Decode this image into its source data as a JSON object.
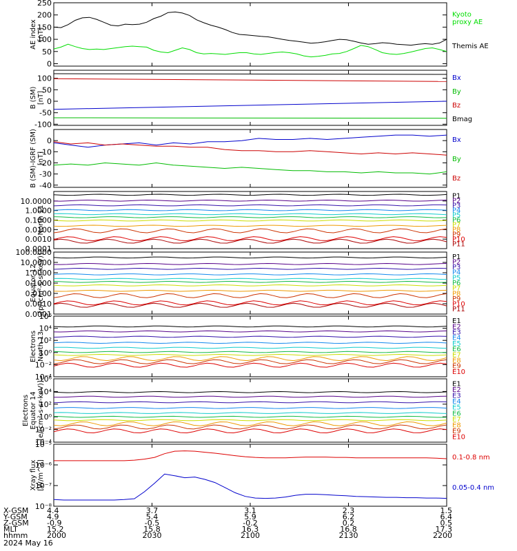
{
  "chart_data": [
    {
      "type": "line",
      "ylabel": [
        "AE index",
        "[nT]"
      ],
      "ylim": [
        -10,
        250
      ],
      "yticks": [
        0,
        50,
        100,
        150,
        200,
        250
      ],
      "yticklabels": [
        "0",
        "50",
        "100",
        "150",
        "200",
        "250"
      ],
      "series": [
        {
          "name": "Kyoto\nproxy AE",
          "color": "#00dd00",
          "y": [
            60,
            68,
            80,
            70,
            62,
            58,
            60,
            58,
            62,
            66,
            70,
            72,
            70,
            68,
            55,
            48,
            45,
            55,
            65,
            58,
            45,
            40,
            42,
            40,
            38,
            42,
            45,
            45,
            40,
            38,
            42,
            46,
            48,
            45,
            40,
            32,
            28,
            30,
            34,
            40,
            42,
            50,
            62,
            75,
            70,
            58,
            45,
            40,
            38,
            42,
            48,
            55,
            62,
            65,
            58,
            50
          ]
        },
        {
          "name": "Themis AE",
          "color": "#000000",
          "y": [
            150,
            148,
            160,
            178,
            188,
            190,
            182,
            170,
            158,
            155,
            162,
            160,
            162,
            170,
            185,
            195,
            210,
            212,
            208,
            198,
            180,
            168,
            158,
            150,
            140,
            128,
            120,
            118,
            115,
            112,
            110,
            105,
            100,
            95,
            92,
            88,
            84,
            86,
            90,
            95,
            100,
            98,
            92,
            85,
            80,
            82,
            86,
            84,
            80,
            78,
            76,
            80,
            82,
            80,
            85,
            100
          ]
        }
      ]
    },
    {
      "type": "line",
      "ylabel": [
        "B (SM)",
        "[nT]"
      ],
      "ylim": [
        -105,
        135
      ],
      "yticks": [
        -100,
        -50,
        0,
        50,
        100
      ],
      "yticklabels": [
        "-100",
        "-50",
        "0",
        "50",
        "100"
      ],
      "series": [
        {
          "name": "Bx",
          "color": "#0000cc",
          "y": [
            -35,
            0
          ]
        },
        {
          "name": "By",
          "color": "#00bb00",
          "y": [
            -72,
            -74
          ]
        },
        {
          "name": "Bz",
          "color": "#cc0000",
          "y": [
            98,
            86
          ]
        },
        {
          "name": "Bmag",
          "color": "#000000",
          "y": [
            120,
            117
          ]
        }
      ]
    },
    {
      "type": "line",
      "ylabel": [
        "B (SM)-IGRF (SM)",
        "[nT]"
      ],
      "ylim": [
        -42,
        10
      ],
      "yticks": [
        -40,
        -30,
        -20,
        -10,
        0
      ],
      "yticklabels": [
        "-40",
        "-30",
        "-20",
        "-10",
        "0"
      ],
      "series": [
        {
          "name": "Bx",
          "color": "#0000cc",
          "y": [
            -2,
            -4,
            -6,
            -4,
            -3,
            -2,
            -4,
            -2,
            -3,
            -1,
            -1,
            0,
            2,
            1,
            1,
            2,
            1,
            2,
            3,
            4,
            5,
            5,
            4,
            5
          ]
        },
        {
          "name": "By",
          "color": "#00bb00",
          "y": [
            -22,
            -21,
            -22,
            -20,
            -21,
            -22,
            -20,
            -22,
            -23,
            -24,
            -25,
            -24,
            -25,
            -26,
            -27,
            -27,
            -28,
            -28,
            -29,
            -28,
            -29,
            -29,
            -30,
            -28
          ]
        },
        {
          "name": "Bz",
          "color": "#cc0000",
          "y": [
            -1,
            -3,
            -2,
            -4,
            -3,
            -4,
            -5,
            -5,
            -6,
            -6,
            -8,
            -9,
            -9,
            -10,
            -10,
            -9,
            -10,
            -11,
            -12,
            -11,
            -12,
            -11,
            -12,
            -13
          ]
        }
      ]
    },
    {
      "type": "line",
      "log": true,
      "ylabel": [
        "North 11"
      ],
      "ylim": [
        0.0001,
        100
      ],
      "yticks": [
        0.0001,
        0.001,
        0.01,
        0.1,
        1,
        10
      ],
      "yticklabels": [
        "0.0001",
        "0.0010",
        "0.0100",
        "0.1000",
        "1.0000",
        "10.0000"
      ],
      "series": [
        {
          "name": "P1",
          "color": "#000000",
          "y": 45
        },
        {
          "name": "P2",
          "color": "#550088",
          "y": 11
        },
        {
          "name": "P3",
          "color": "#3311aa",
          "y": 3.5
        },
        {
          "name": "P4",
          "color": "#1188ee",
          "y": 1.1
        },
        {
          "name": "P5",
          "color": "#11cccc",
          "y": 0.42
        },
        {
          "name": "P6",
          "color": "#11bb44",
          "y": 0.2
        },
        {
          "name": "P7",
          "color": "#ccdd00",
          "y": 0.09
        },
        {
          "name": "P8",
          "color": "#ee9900",
          "y": 0.025
        },
        {
          "name": "P9",
          "color": "#cc3300",
          "y": 0.0075
        },
        {
          "name": "P10",
          "color": "#dd0000",
          "y": 0.0011
        },
        {
          "name": "P11",
          "color": "#aa0000",
          "y": 0.0006
        }
      ]
    },
    {
      "type": "line",
      "log": true,
      "ylabel": [
        "Equator 12",
        "[p/(cm²-s-sr-keV)]"
      ],
      "ylim": [
        0.0001,
        100
      ],
      "yticks": [
        0.0001,
        0.001,
        0.01,
        0.1,
        1,
        10,
        100
      ],
      "yticklabels": [
        "0.0001",
        "0.0010",
        "0.0100",
        "0.1000",
        "1.0000",
        "10.0000",
        "100.0000"
      ],
      "series": [
        {
          "name": "P1",
          "color": "#000000",
          "y": 30
        },
        {
          "name": "P2",
          "color": "#550088",
          "y": 7
        },
        {
          "name": "P3",
          "color": "#3311aa",
          "y": 2.4
        },
        {
          "name": "P4",
          "color": "#1188ee",
          "y": 0.7
        },
        {
          "name": "P5",
          "color": "#11cccc",
          "y": 0.25
        },
        {
          "name": "P6",
          "color": "#11bb44",
          "y": 0.13
        },
        {
          "name": "P7",
          "color": "#ccdd00",
          "y": 0.06
        },
        {
          "name": "P8",
          "color": "#ee9900",
          "y": 0.018
        },
        {
          "name": "P9",
          "color": "#cc3300",
          "y": 0.006
        },
        {
          "name": "P10",
          "color": "#dd0000",
          "y": 0.0012
        },
        {
          "name": "P11",
          "color": "#aa0000",
          "y": 0.0007
        }
      ]
    },
    {
      "type": "line",
      "log": true,
      "ylabel": [
        "Electrons",
        "North 13"
      ],
      "ylim": [
        0.0001,
        1000000
      ],
      "yticks": [
        0.0001,
        0.01,
        1,
        100,
        10000,
        1000000
      ],
      "yticklabels": [
        "10⁻⁴",
        "10⁻²",
        "10⁰",
        "10²",
        "10⁴",
        "10⁶"
      ],
      "series": [
        {
          "name": "E1",
          "color": "#000000",
          "y": 20000
        },
        {
          "name": "E2",
          "color": "#550088",
          "y": 3000
        },
        {
          "name": "E3",
          "color": "#3311aa",
          "y": 400
        },
        {
          "name": "E4",
          "color": "#1188ee",
          "y": 40
        },
        {
          "name": "E5",
          "color": "#11cccc",
          "y": 6
        },
        {
          "name": "E6",
          "color": "#11bb44",
          "y": 1.2
        },
        {
          "name": "E7",
          "color": "#ccdd00",
          "y": 0.4
        },
        {
          "name": "E8",
          "color": "#ee9900",
          "y": 0.1
        },
        {
          "name": "E9",
          "color": "#cc3300",
          "y": 0.03
        },
        {
          "name": "E10",
          "color": "#dd0000",
          "y": 0.008
        }
      ]
    },
    {
      "type": "line",
      "log": true,
      "ylabel": [
        "Electrons",
        "Equator 14",
        "[e/(cm²-s-sr-keV)]"
      ],
      "ylim": [
        0.0001,
        1000000
      ],
      "yticks": [
        0.0001,
        0.01,
        1,
        100,
        10000,
        1000000
      ],
      "yticklabels": [
        "10⁻⁴",
        "10⁻²",
        "10⁰",
        "10²",
        "10⁴",
        "10⁶"
      ],
      "series": [
        {
          "name": "E1",
          "color": "#000000",
          "y": 8000
        },
        {
          "name": "E2",
          "color": "#550088",
          "y": 1500
        },
        {
          "name": "E3",
          "color": "#3311aa",
          "y": 200
        },
        {
          "name": "E4",
          "color": "#1188ee",
          "y": 25
        },
        {
          "name": "E5",
          "color": "#11cccc",
          "y": 4
        },
        {
          "name": "E6",
          "color": "#11bb44",
          "y": 1
        },
        {
          "name": "E7",
          "color": "#ccdd00",
          "y": 0.3
        },
        {
          "name": "E8",
          "color": "#ee9900",
          "y": 0.08
        },
        {
          "name": "E9",
          "color": "#cc3300",
          "y": 0.025
        },
        {
          "name": "E10",
          "color": "#dd0000",
          "y": 0.006
        }
      ]
    },
    {
      "type": "line",
      "log": true,
      "ylabel": [
        "Xray flux",
        "[W/m^2]"
      ],
      "ylim": [
        1e-08,
        1e-05
      ],
      "yticks": [
        1e-08,
        1e-07,
        1e-06,
        1e-05
      ],
      "yticklabels": [
        "10⁻⁸",
        "10⁻⁷",
        "10⁻⁶",
        "10⁻⁵"
      ],
      "series": [
        {
          "name": "0.1-0.8 nm",
          "color": "#dd0000",
          "y": [
            1.6e-06,
            1.6e-06,
            1.6e-06,
            1.6e-06,
            1.6e-06,
            1.6e-06,
            1.6e-06,
            1.6e-06,
            1.7e-06,
            1.9e-06,
            2.3e-06,
            3.5e-06,
            4.6e-06,
            4.8e-06,
            4.6e-06,
            4.1e-06,
            3.7e-06,
            3.2e-06,
            2.8e-06,
            2.5e-06,
            2.3e-06,
            2.2e-06,
            2.2e-06,
            2.2e-06,
            2.3e-06,
            2.4e-06,
            2.4e-06,
            2.4e-06,
            2.3e-06,
            2.3e-06,
            2.2e-06,
            2.2e-06,
            2.2e-06,
            2.2e-06,
            2.2e-06,
            2.2e-06,
            2.2e-06,
            2.2e-06,
            2.1e-06,
            2e-06
          ]
        },
        {
          "name": "0.05-0.4 nm",
          "color": "#0000cc",
          "y": [
            2.1e-08,
            2e-08,
            2e-08,
            2e-08,
            2e-08,
            2e-08,
            2e-08,
            2.1e-08,
            2.3e-08,
            5e-08,
            1.3e-07,
            3.6e-07,
            3e-07,
            2.4e-07,
            2.6e-07,
            2e-07,
            1.4e-07,
            8e-08,
            4.5e-08,
            3e-08,
            2.5e-08,
            2.4e-08,
            2.5e-08,
            2.8e-08,
            3.4e-08,
            3.8e-08,
            3.8e-08,
            3.6e-08,
            3.4e-08,
            3.2e-08,
            3e-08,
            2.9e-08,
            2.8e-08,
            2.7e-08,
            2.7e-08,
            2.6e-08,
            2.6e-08,
            2.5e-08,
            2.5e-08,
            2.4e-08
          ]
        }
      ]
    }
  ],
  "footer": {
    "row_labels": [
      "X-GSM",
      "Y-GSM",
      "Z-GSM",
      "MLT",
      "hhmm",
      "2024 May 16"
    ],
    "columns": [
      [
        "4.4",
        "4.9",
        "-0.9",
        "15.2",
        "2000"
      ],
      [
        "3.7",
        "5.4",
        "-0.5",
        "15.8",
        "2030"
      ],
      [
        "3.1",
        "5.9",
        "-0.2",
        "16.3",
        "2100"
      ],
      [
        "2.3",
        "6.2",
        "0.2",
        "16.8",
        "2130"
      ],
      [
        "1.5",
        "6.4",
        "0.5",
        "17.3",
        "2200"
      ]
    ]
  }
}
